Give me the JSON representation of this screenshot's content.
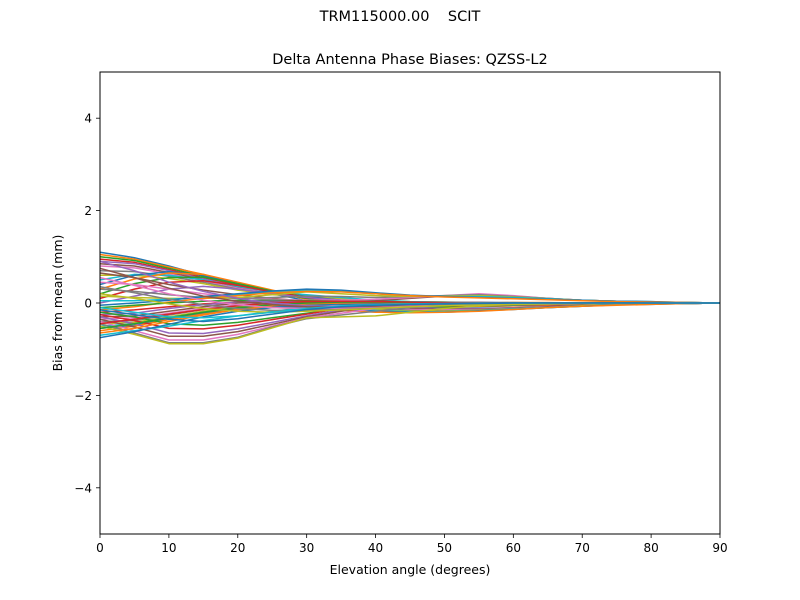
{
  "figure": {
    "suptitle": "TRM115000.00    SCIT"
  },
  "chart_data": {
    "type": "line",
    "title": "Delta Antenna Phase Biases: QZSS-L2",
    "xlabel": "Elevation angle (degrees)",
    "ylabel": "Bias from mean (mm)",
    "xlim": [
      0,
      90
    ],
    "ylim": [
      -5,
      5
    ],
    "xticks": [
      0,
      10,
      20,
      30,
      40,
      50,
      60,
      70,
      80,
      90
    ],
    "yticks": [
      -4,
      -2,
      0,
      2,
      4
    ],
    "ytick_labels": [
      "−4",
      "−2",
      "0",
      "2",
      "4"
    ],
    "grid": false,
    "legend": "none",
    "colors": [
      "#1f77b4",
      "#ff7f0e",
      "#2ca02c",
      "#d62728",
      "#9467bd",
      "#8c564b",
      "#e377c2",
      "#7f7f7f",
      "#bcbd22",
      "#17becf"
    ],
    "x": [
      0,
      5,
      10,
      15,
      20,
      25,
      30,
      35,
      40,
      45,
      50,
      55,
      60,
      65,
      70,
      75,
      80,
      85,
      90
    ],
    "series": [
      {
        "values": [
          1.1,
          0.98,
          0.8,
          0.6,
          0.4,
          0.2,
          0.05,
          -0.05,
          -0.1,
          -0.12,
          -0.1,
          -0.08,
          -0.06,
          -0.05,
          -0.04,
          -0.03,
          -0.02,
          -0.01,
          0.0
        ]
      },
      {
        "values": [
          1.05,
          0.95,
          0.78,
          0.62,
          0.42,
          0.24,
          0.08,
          -0.02,
          -0.08,
          -0.1,
          -0.09,
          -0.07,
          -0.06,
          -0.05,
          -0.04,
          -0.03,
          -0.02,
          -0.01,
          0.0
        ]
      },
      {
        "values": [
          1.0,
          0.92,
          0.75,
          0.58,
          0.4,
          0.22,
          0.1,
          0.02,
          -0.04,
          -0.08,
          -0.08,
          -0.06,
          -0.05,
          -0.04,
          -0.03,
          -0.02,
          -0.02,
          -0.01,
          0.0
        ]
      },
      {
        "values": [
          0.95,
          0.88,
          0.72,
          0.55,
          0.38,
          0.24,
          0.12,
          0.04,
          -0.02,
          -0.06,
          -0.06,
          -0.05,
          -0.04,
          -0.04,
          -0.03,
          -0.02,
          -0.01,
          -0.01,
          0.0
        ]
      },
      {
        "values": [
          0.9,
          0.85,
          0.7,
          0.52,
          0.36,
          0.22,
          0.14,
          0.06,
          0.0,
          -0.04,
          -0.05,
          -0.05,
          -0.04,
          -0.03,
          -0.03,
          -0.02,
          -0.01,
          0.0,
          0.0
        ]
      },
      {
        "values": [
          0.85,
          0.8,
          0.66,
          0.5,
          0.34,
          0.22,
          0.15,
          0.08,
          0.02,
          -0.02,
          -0.04,
          -0.04,
          -0.03,
          -0.03,
          -0.02,
          -0.02,
          -0.01,
          0.0,
          0.0
        ]
      },
      {
        "values": [
          0.8,
          0.76,
          0.63,
          0.48,
          0.32,
          0.21,
          0.16,
          0.09,
          0.04,
          0.0,
          -0.02,
          -0.03,
          -0.03,
          -0.02,
          -0.02,
          -0.01,
          -0.01,
          0.0,
          0.0
        ]
      },
      {
        "values": [
          0.7,
          0.68,
          0.58,
          0.45,
          0.3,
          0.2,
          0.16,
          0.1,
          0.05,
          0.02,
          0.0,
          -0.02,
          -0.02,
          -0.02,
          -0.02,
          -0.01,
          -0.01,
          0.0,
          0.0
        ]
      },
      {
        "values": [
          0.6,
          0.6,
          0.53,
          0.42,
          0.28,
          0.18,
          0.15,
          0.1,
          0.06,
          0.03,
          0.02,
          0.0,
          -0.01,
          -0.02,
          -0.01,
          -0.01,
          -0.01,
          0.0,
          0.0
        ]
      },
      {
        "values": [
          0.5,
          0.62,
          0.6,
          0.5,
          0.36,
          0.24,
          0.18,
          0.12,
          0.06,
          0.03,
          0.02,
          0.01,
          0.0,
          -0.01,
          -0.01,
          -0.01,
          0.0,
          0.0,
          0.0
        ]
      },
      {
        "values": [
          0.4,
          0.6,
          0.68,
          0.6,
          0.42,
          0.26,
          0.14,
          0.06,
          0.02,
          0.0,
          0.0,
          0.01,
          0.01,
          0.0,
          0.0,
          0.0,
          0.0,
          0.0,
          0.0
        ]
      },
      {
        "values": [
          0.3,
          0.52,
          0.65,
          0.62,
          0.45,
          0.28,
          0.12,
          0.04,
          0.0,
          -0.02,
          -0.01,
          0.0,
          0.01,
          0.01,
          0.0,
          0.0,
          0.0,
          0.0,
          0.0
        ]
      },
      {
        "values": [
          0.2,
          0.42,
          0.55,
          0.56,
          0.42,
          0.26,
          0.12,
          0.04,
          0.0,
          -0.02,
          -0.02,
          -0.01,
          0.0,
          0.0,
          0.0,
          0.0,
          0.0,
          0.0,
          0.0
        ]
      },
      {
        "values": [
          0.1,
          0.3,
          0.45,
          0.48,
          0.38,
          0.24,
          0.12,
          0.05,
          0.02,
          0.0,
          -0.01,
          -0.01,
          0.0,
          0.0,
          0.0,
          0.0,
          0.0,
          0.0,
          0.0
        ]
      },
      {
        "values": [
          0.0,
          0.15,
          0.3,
          0.36,
          0.3,
          0.2,
          0.12,
          0.06,
          0.03,
          0.01,
          0.0,
          0.0,
          0.0,
          0.0,
          0.0,
          0.0,
          0.0,
          0.0,
          0.0
        ]
      },
      {
        "values": [
          0.65,
          0.55,
          0.4,
          0.28,
          0.18,
          0.1,
          0.04,
          0.02,
          0.05,
          0.1,
          0.15,
          0.18,
          0.15,
          0.1,
          0.06,
          0.04,
          0.02,
          0.01,
          0.0
        ]
      },
      {
        "values": [
          0.45,
          0.4,
          0.3,
          0.2,
          0.12,
          0.08,
          0.06,
          0.06,
          0.08,
          0.12,
          0.16,
          0.2,
          0.16,
          0.1,
          0.06,
          0.04,
          0.02,
          0.01,
          0.0
        ]
      },
      {
        "values": [
          0.3,
          0.25,
          0.18,
          0.12,
          0.1,
          0.12,
          0.15,
          0.14,
          0.12,
          0.14,
          0.16,
          0.18,
          0.14,
          0.1,
          0.06,
          0.04,
          0.02,
          0.01,
          0.0
        ]
      },
      {
        "values": [
          0.15,
          0.12,
          0.1,
          0.1,
          0.12,
          0.18,
          0.24,
          0.2,
          0.16,
          0.14,
          0.15,
          0.16,
          0.13,
          0.09,
          0.06,
          0.04,
          0.02,
          0.01,
          0.0
        ]
      },
      {
        "values": [
          0.05,
          0.05,
          0.08,
          0.12,
          0.18,
          0.24,
          0.28,
          0.25,
          0.2,
          0.16,
          0.14,
          0.14,
          0.12,
          0.09,
          0.06,
          0.04,
          0.03,
          0.01,
          0.0
        ]
      },
      {
        "values": [
          -0.05,
          0.0,
          0.06,
          0.14,
          0.2,
          0.26,
          0.3,
          0.28,
          0.22,
          0.17,
          0.14,
          0.12,
          0.1,
          0.08,
          0.06,
          0.04,
          0.03,
          0.01,
          0.0
        ]
      },
      {
        "values": [
          -0.15,
          -0.08,
          0.02,
          0.1,
          0.16,
          0.22,
          0.25,
          0.24,
          0.2,
          0.16,
          0.13,
          0.11,
          0.09,
          0.07,
          0.05,
          0.03,
          0.02,
          0.01,
          0.0
        ]
      },
      {
        "values": [
          -0.1,
          -0.05,
          0.0,
          0.04,
          0.06,
          0.06,
          0.05,
          0.04,
          0.03,
          0.02,
          0.01,
          0.0,
          0.0,
          0.0,
          0.0,
          0.0,
          0.0,
          0.0,
          0.0
        ]
      },
      {
        "values": [
          -0.2,
          -0.15,
          -0.08,
          -0.02,
          0.02,
          0.04,
          0.04,
          0.03,
          0.02,
          0.01,
          0.0,
          0.0,
          0.0,
          0.0,
          0.0,
          0.0,
          0.0,
          0.0,
          0.0
        ]
      },
      {
        "values": [
          -0.25,
          -0.22,
          -0.12,
          -0.04,
          0.02,
          0.04,
          0.02,
          -0.02,
          -0.06,
          -0.1,
          -0.12,
          -0.12,
          -0.1,
          -0.08,
          -0.05,
          -0.03,
          -0.02,
          -0.01,
          0.0
        ]
      },
      {
        "values": [
          -0.3,
          -0.28,
          -0.18,
          -0.08,
          0.0,
          0.02,
          0.0,
          -0.04,
          -0.08,
          -0.12,
          -0.14,
          -0.13,
          -0.11,
          -0.08,
          -0.05,
          -0.03,
          -0.02,
          -0.01,
          0.0
        ]
      },
      {
        "values": [
          -0.35,
          -0.32,
          -0.22,
          -0.12,
          -0.04,
          0.0,
          -0.02,
          -0.06,
          -0.1,
          -0.14,
          -0.15,
          -0.14,
          -0.12,
          -0.09,
          -0.06,
          -0.04,
          -0.02,
          -0.01,
          0.0
        ]
      },
      {
        "values": [
          -0.4,
          -0.38,
          -0.26,
          -0.14,
          -0.06,
          -0.02,
          -0.04,
          -0.08,
          -0.12,
          -0.16,
          -0.17,
          -0.15,
          -0.12,
          -0.09,
          -0.06,
          -0.04,
          -0.02,
          -0.01,
          0.0
        ]
      },
      {
        "values": [
          -0.45,
          -0.42,
          -0.3,
          -0.18,
          -0.08,
          -0.04,
          -0.06,
          -0.1,
          -0.14,
          -0.18,
          -0.18,
          -0.16,
          -0.13,
          -0.1,
          -0.06,
          -0.04,
          -0.02,
          -0.01,
          0.0
        ]
      },
      {
        "values": [
          -0.5,
          -0.45,
          -0.32,
          -0.2,
          -0.1,
          -0.06,
          -0.08,
          -0.12,
          -0.16,
          -0.19,
          -0.19,
          -0.17,
          -0.13,
          -0.1,
          -0.07,
          -0.04,
          -0.02,
          -0.01,
          0.0
        ]
      },
      {
        "values": [
          -0.55,
          -0.48,
          -0.34,
          -0.22,
          -0.12,
          -0.08,
          -0.1,
          -0.14,
          -0.18,
          -0.2,
          -0.2,
          -0.17,
          -0.14,
          -0.1,
          -0.07,
          -0.04,
          -0.03,
          -0.01,
          0.0
        ]
      },
      {
        "values": [
          -0.6,
          -0.5,
          -0.36,
          -0.24,
          -0.14,
          -0.1,
          -0.12,
          -0.16,
          -0.2,
          -0.21,
          -0.2,
          -0.18,
          -0.14,
          -0.1,
          -0.07,
          -0.05,
          -0.03,
          -0.01,
          0.0
        ]
      },
      {
        "values": [
          -0.2,
          -0.3,
          -0.45,
          -0.48,
          -0.42,
          -0.32,
          -0.22,
          -0.12,
          -0.06,
          -0.04,
          -0.04,
          -0.03,
          -0.02,
          -0.02,
          -0.01,
          -0.01,
          0.0,
          0.0,
          0.0
        ]
      },
      {
        "values": [
          -0.25,
          -0.38,
          -0.55,
          -0.56,
          -0.48,
          -0.36,
          -0.24,
          -0.12,
          -0.05,
          -0.02,
          -0.02,
          -0.02,
          -0.02,
          -0.01,
          -0.01,
          -0.01,
          0.0,
          0.0,
          0.0
        ]
      },
      {
        "values": [
          -0.3,
          -0.45,
          -0.65,
          -0.66,
          -0.56,
          -0.42,
          -0.28,
          -0.15,
          -0.06,
          -0.02,
          -0.01,
          -0.01,
          -0.01,
          -0.01,
          -0.01,
          0.0,
          0.0,
          0.0,
          0.0
        ]
      },
      {
        "values": [
          -0.35,
          -0.52,
          -0.72,
          -0.72,
          -0.62,
          -0.46,
          -0.3,
          -0.18,
          -0.08,
          -0.03,
          -0.01,
          0.0,
          0.0,
          0.0,
          0.0,
          0.0,
          0.0,
          0.0,
          0.0
        ]
      },
      {
        "values": [
          -0.4,
          -0.6,
          -0.8,
          -0.8,
          -0.68,
          -0.5,
          -0.32,
          -0.22,
          -0.12,
          -0.05,
          -0.02,
          0.0,
          0.0,
          0.0,
          0.0,
          0.0,
          0.0,
          0.0,
          0.0
        ]
      },
      {
        "values": [
          -0.45,
          -0.65,
          -0.86,
          -0.86,
          -0.74,
          -0.52,
          -0.34,
          -0.26,
          -0.18,
          -0.1,
          -0.05,
          -0.02,
          -0.01,
          0.0,
          0.0,
          0.0,
          0.0,
          0.0,
          0.0
        ]
      },
      {
        "values": [
          -0.5,
          -0.68,
          -0.88,
          -0.88,
          -0.76,
          -0.54,
          -0.32,
          -0.3,
          -0.28,
          -0.2,
          -0.12,
          -0.06,
          -0.03,
          -0.01,
          0.0,
          0.0,
          0.0,
          0.0,
          0.0
        ]
      },
      {
        "values": [
          -0.7,
          -0.6,
          -0.5,
          -0.38,
          -0.28,
          -0.18,
          -0.1,
          -0.06,
          -0.04,
          -0.02,
          -0.02,
          -0.01,
          -0.01,
          0.0,
          0.0,
          0.0,
          0.0,
          0.0,
          0.0
        ]
      },
      {
        "values": [
          -0.75,
          -0.62,
          -0.46,
          -0.3,
          -0.18,
          -0.1,
          -0.05,
          -0.02,
          -0.01,
          0.0,
          0.0,
          0.0,
          0.0,
          0.0,
          0.0,
          0.0,
          0.0,
          0.0,
          0.0
        ]
      },
      {
        "values": [
          -0.65,
          -0.55,
          -0.4,
          -0.26,
          -0.14,
          -0.06,
          -0.02,
          0.0,
          0.01,
          0.01,
          0.0,
          0.0,
          0.0,
          0.0,
          0.0,
          0.0,
          0.0,
          0.0,
          0.0
        ]
      },
      {
        "values": [
          -0.55,
          -0.45,
          -0.32,
          -0.2,
          -0.1,
          -0.04,
          0.0,
          0.02,
          0.02,
          0.01,
          0.01,
          0.0,
          0.0,
          0.0,
          0.0,
          0.0,
          0.0,
          0.0,
          0.0
        ]
      },
      {
        "values": [
          -0.45,
          -0.35,
          -0.24,
          -0.14,
          -0.06,
          0.0,
          0.03,
          0.04,
          0.03,
          0.02,
          0.01,
          0.01,
          0.0,
          0.0,
          0.0,
          0.0,
          0.0,
          0.0,
          0.0
        ]
      },
      {
        "values": [
          0.9,
          0.7,
          0.45,
          0.25,
          0.1,
          0.0,
          -0.06,
          -0.08,
          -0.08,
          -0.06,
          -0.04,
          -0.03,
          -0.02,
          -0.02,
          -0.01,
          -0.01,
          0.0,
          0.0,
          0.0
        ]
      },
      {
        "values": [
          0.75,
          0.55,
          0.32,
          0.15,
          0.04,
          -0.04,
          -0.08,
          -0.09,
          -0.08,
          -0.06,
          -0.04,
          -0.03,
          -0.02,
          -0.02,
          -0.01,
          -0.01,
          0.0,
          0.0,
          0.0
        ]
      },
      {
        "values": [
          0.55,
          0.38,
          0.2,
          0.06,
          -0.04,
          -0.1,
          -0.12,
          -0.12,
          -0.1,
          -0.07,
          -0.05,
          -0.03,
          -0.02,
          -0.02,
          -0.01,
          -0.01,
          0.0,
          0.0,
          0.0
        ]
      },
      {
        "values": [
          0.35,
          0.22,
          0.08,
          -0.04,
          -0.12,
          -0.16,
          -0.16,
          -0.14,
          -0.11,
          -0.08,
          -0.05,
          -0.04,
          -0.03,
          -0.02,
          -0.01,
          -0.01,
          0.0,
          0.0,
          0.0
        ]
      },
      {
        "values": [
          0.2,
          0.1,
          -0.02,
          -0.12,
          -0.18,
          -0.2,
          -0.18,
          -0.15,
          -0.12,
          -0.08,
          -0.06,
          -0.04,
          -0.03,
          -0.02,
          -0.01,
          -0.01,
          0.0,
          0.0,
          0.0
        ]
      },
      {
        "values": [
          -0.1,
          -0.2,
          -0.3,
          -0.32,
          -0.28,
          -0.2,
          -0.12,
          -0.07,
          -0.04,
          -0.02,
          -0.01,
          0.0,
          0.0,
          0.0,
          0.0,
          0.0,
          0.0,
          0.0,
          0.0
        ]
      },
      {
        "values": [
          -0.15,
          -0.25,
          -0.35,
          -0.4,
          -0.34,
          -0.24,
          -0.14,
          -0.08,
          -0.05,
          -0.03,
          -0.02,
          -0.01,
          0.0,
          0.0,
          0.0,
          0.0,
          0.0,
          0.0,
          0.0
        ]
      }
    ]
  }
}
